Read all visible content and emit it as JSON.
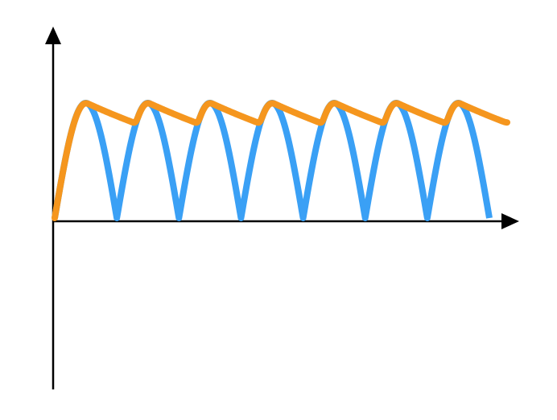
{
  "diagram": {
    "type": "rectified-sine-with-smoothing",
    "colors": {
      "axes": "#000000",
      "rectified_wave": "#3aa0f5",
      "smoothed_output": "#f5961e",
      "background": "#ffffff"
    },
    "rectified_wave": {
      "kind": "full-wave rectified sine",
      "half_cycles": 7,
      "peak": 1.0
    },
    "smoothed_output": {
      "kind": "capacitor-smoothed envelope",
      "rise_from_zero": true,
      "dip_level": 0.85,
      "trailing_level": 0.83
    }
  }
}
